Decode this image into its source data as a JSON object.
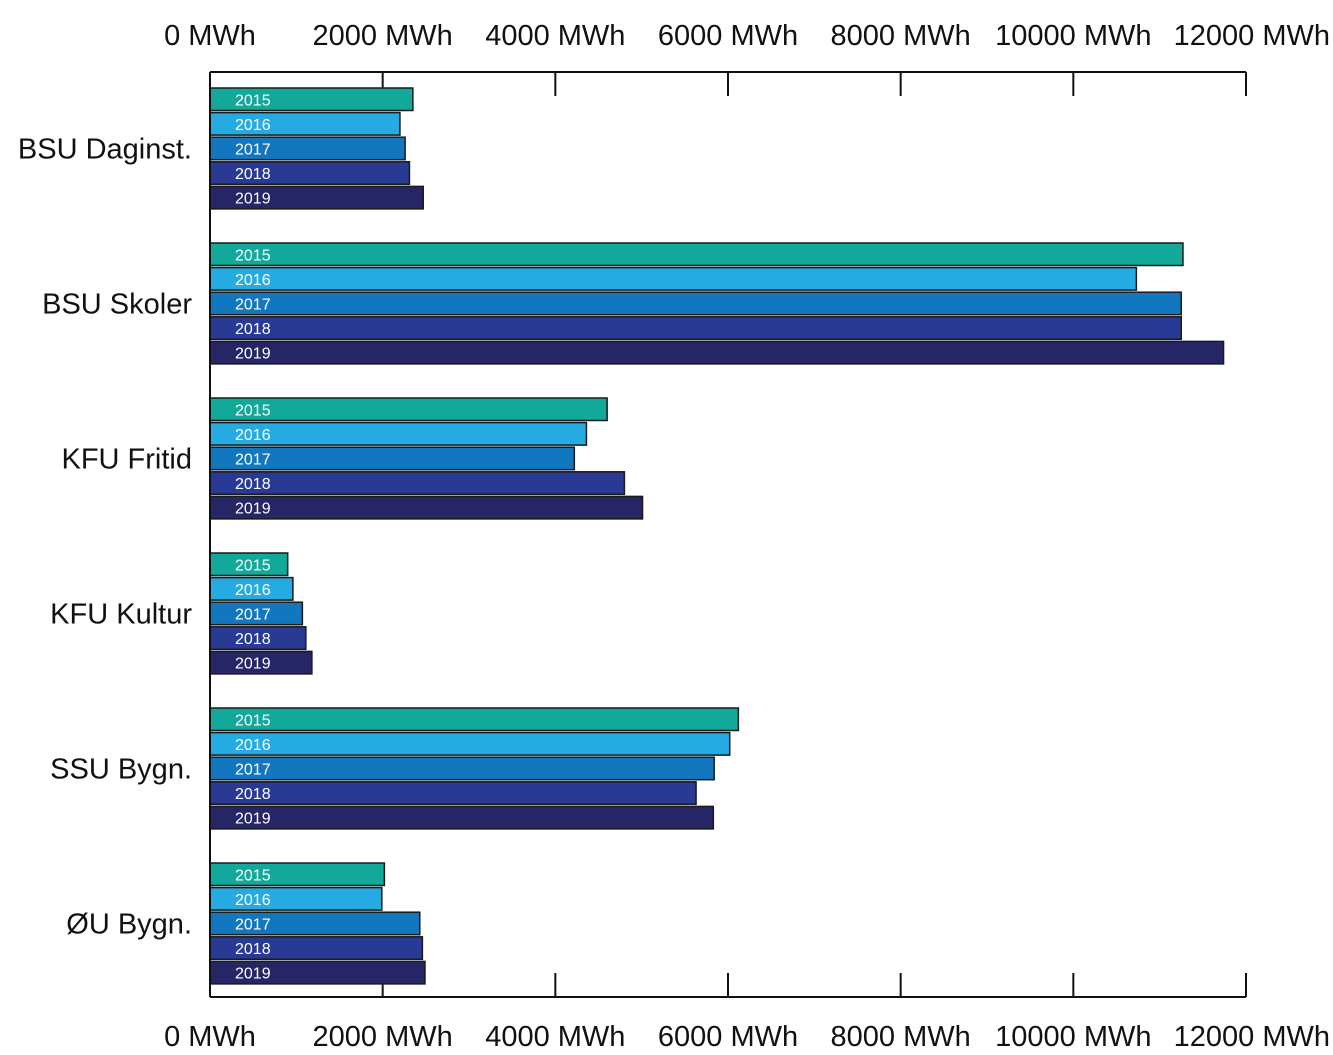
{
  "chart_data": {
    "type": "bar",
    "orientation": "horizontal",
    "categories": [
      "BSU Daginst.",
      "BSU Skoler",
      "KFU Fritid",
      "KFU Kultur",
      "SSU Bygn.",
      "ØU Bygn."
    ],
    "series": [
      {
        "name": "2015",
        "color": "#12a89a",
        "values": [
          2350,
          11270,
          4600,
          900,
          6120,
          2020
        ]
      },
      {
        "name": "2016",
        "color": "#25abe1",
        "values": [
          2200,
          10730,
          4360,
          960,
          6020,
          1990
        ]
      },
      {
        "name": "2017",
        "color": "#1377bf",
        "values": [
          2260,
          11250,
          4220,
          1070,
          5840,
          2430
        ]
      },
      {
        "name": "2018",
        "color": "#283a94",
        "values": [
          2310,
          11250,
          4800,
          1110,
          5630,
          2460
        ]
      },
      {
        "name": "2019",
        "color": "#262566",
        "values": [
          2470,
          11740,
          5010,
          1180,
          5830,
          2490
        ]
      }
    ],
    "xlim": [
      0,
      12000
    ],
    "x_ticks": [
      0,
      2000,
      4000,
      6000,
      8000,
      10000,
      12000
    ],
    "x_tick_labels": [
      "0 MWh",
      "2000 MWh",
      "4000 MWh",
      "6000 MWh",
      "8000 MWh",
      "10000 MWh",
      "12000 MWh"
    ],
    "title": "",
    "xlabel": "",
    "ylabel": "",
    "grid": false,
    "legend": "none"
  }
}
